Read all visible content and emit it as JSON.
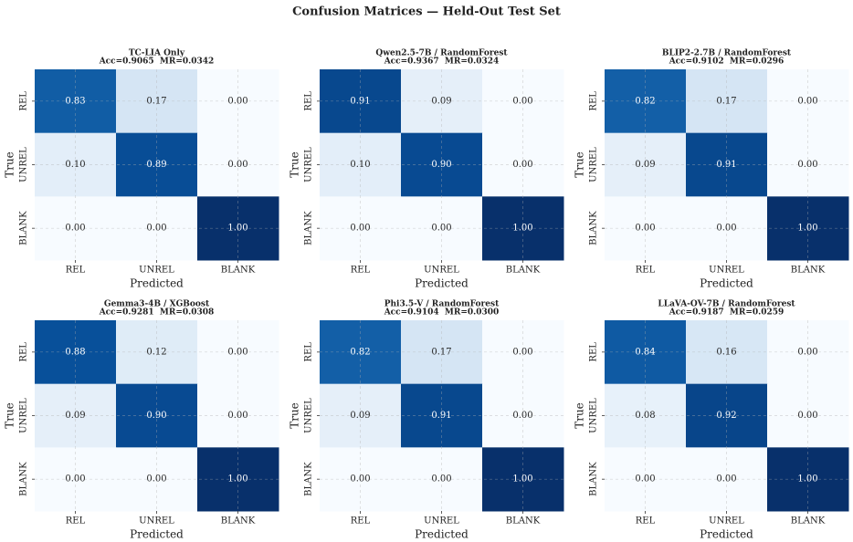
{
  "title": "Confusion Matrices — Held-Out Test Set",
  "chart_data": [
    {
      "type": "heatmap",
      "title": "TC-LIA Only",
      "subtitle": "Acc=0.9065  MR=0.0342",
      "x_categories": [
        "REL",
        "UNREL",
        "BLANK"
      ],
      "y_categories": [
        "REL",
        "UNREL",
        "BLANK"
      ],
      "xlabel": "Predicted",
      "ylabel": "True",
      "values": [
        [
          0.83,
          0.17,
          0
        ],
        [
          0.1,
          0.89,
          0
        ],
        [
          0,
          0,
          1
        ]
      ],
      "value_labels": [
        [
          "0.83",
          "0.17",
          "0.00"
        ],
        [
          "0.10",
          "0.89",
          "0.00"
        ],
        [
          "0.00",
          "0.00",
          "1.00"
        ]
      ],
      "colormap": "Blues",
      "clim": [
        0,
        1
      ],
      "grid": true
    },
    {
      "type": "heatmap",
      "title": "Qwen2.5-7B / RandomForest",
      "subtitle": "Acc=0.9367  MR=0.0324",
      "x_categories": [
        "REL",
        "UNREL",
        "BLANK"
      ],
      "y_categories": [
        "REL",
        "UNREL",
        "BLANK"
      ],
      "xlabel": "Predicted",
      "ylabel": "True",
      "values": [
        [
          0.91,
          0.09,
          0
        ],
        [
          0.1,
          0.9,
          0
        ],
        [
          0,
          0,
          1
        ]
      ],
      "value_labels": [
        [
          "0.91",
          "0.09",
          "0.00"
        ],
        [
          "0.10",
          "0.90",
          "0.00"
        ],
        [
          "0.00",
          "0.00",
          "1.00"
        ]
      ],
      "colormap": "Blues",
      "clim": [
        0,
        1
      ],
      "grid": true
    },
    {
      "type": "heatmap",
      "title": "BLIP2-2.7B / RandomForest",
      "subtitle": "Acc=0.9102  MR=0.0296",
      "x_categories": [
        "REL",
        "UNREL",
        "BLANK"
      ],
      "y_categories": [
        "REL",
        "UNREL",
        "BLANK"
      ],
      "xlabel": "Predicted",
      "ylabel": "True",
      "values": [
        [
          0.82,
          0.17,
          0
        ],
        [
          0.09,
          0.91,
          0
        ],
        [
          0,
          0,
          1
        ]
      ],
      "value_labels": [
        [
          "0.82",
          "0.17",
          "0.00"
        ],
        [
          "0.09",
          "0.91",
          "0.00"
        ],
        [
          "0.00",
          "0.00",
          "1.00"
        ]
      ],
      "colormap": "Blues",
      "clim": [
        0,
        1
      ],
      "grid": true
    },
    {
      "type": "heatmap",
      "title": "Gemma3-4B / XGBoost",
      "subtitle": "Acc=0.9281  MR=0.0308",
      "x_categories": [
        "REL",
        "UNREL",
        "BLANK"
      ],
      "y_categories": [
        "REL",
        "UNREL",
        "BLANK"
      ],
      "xlabel": "Predicted",
      "ylabel": "True",
      "values": [
        [
          0.88,
          0.12,
          0
        ],
        [
          0.09,
          0.9,
          0
        ],
        [
          0,
          0,
          1
        ]
      ],
      "value_labels": [
        [
          "0.88",
          "0.12",
          "0.00"
        ],
        [
          "0.09",
          "0.90",
          "0.00"
        ],
        [
          "0.00",
          "0.00",
          "1.00"
        ]
      ],
      "colormap": "Blues",
      "clim": [
        0,
        1
      ],
      "grid": true
    },
    {
      "type": "heatmap",
      "title": "Phi3.5-V / RandomForest",
      "subtitle": "Acc=0.9104  MR=0.0300",
      "x_categories": [
        "REL",
        "UNREL",
        "BLANK"
      ],
      "y_categories": [
        "REL",
        "UNREL",
        "BLANK"
      ],
      "xlabel": "Predicted",
      "ylabel": "True",
      "values": [
        [
          0.82,
          0.17,
          0
        ],
        [
          0.09,
          0.91,
          0
        ],
        [
          0,
          0,
          1
        ]
      ],
      "value_labels": [
        [
          "0.82",
          "0.17",
          "0.00"
        ],
        [
          "0.09",
          "0.91",
          "0.00"
        ],
        [
          "0.00",
          "0.00",
          "1.00"
        ]
      ],
      "colormap": "Blues",
      "clim": [
        0,
        1
      ],
      "grid": true
    },
    {
      "type": "heatmap",
      "title": "LLaVA-OV-7B / RandomForest",
      "subtitle": "Acc=0.9187  MR=0.0259",
      "x_categories": [
        "REL",
        "UNREL",
        "BLANK"
      ],
      "y_categories": [
        "REL",
        "UNREL",
        "BLANK"
      ],
      "xlabel": "Predicted",
      "ylabel": "True",
      "values": [
        [
          0.84,
          0.16,
          0
        ],
        [
          0.08,
          0.92,
          0
        ],
        [
          0,
          0,
          1
        ]
      ],
      "value_labels": [
        [
          "0.84",
          "0.16",
          "0.00"
        ],
        [
          "0.08",
          "0.92",
          "0.00"
        ],
        [
          "0.00",
          "0.00",
          "1.00"
        ]
      ],
      "colormap": "Blues",
      "clim": [
        0,
        1
      ],
      "grid": true
    }
  ]
}
